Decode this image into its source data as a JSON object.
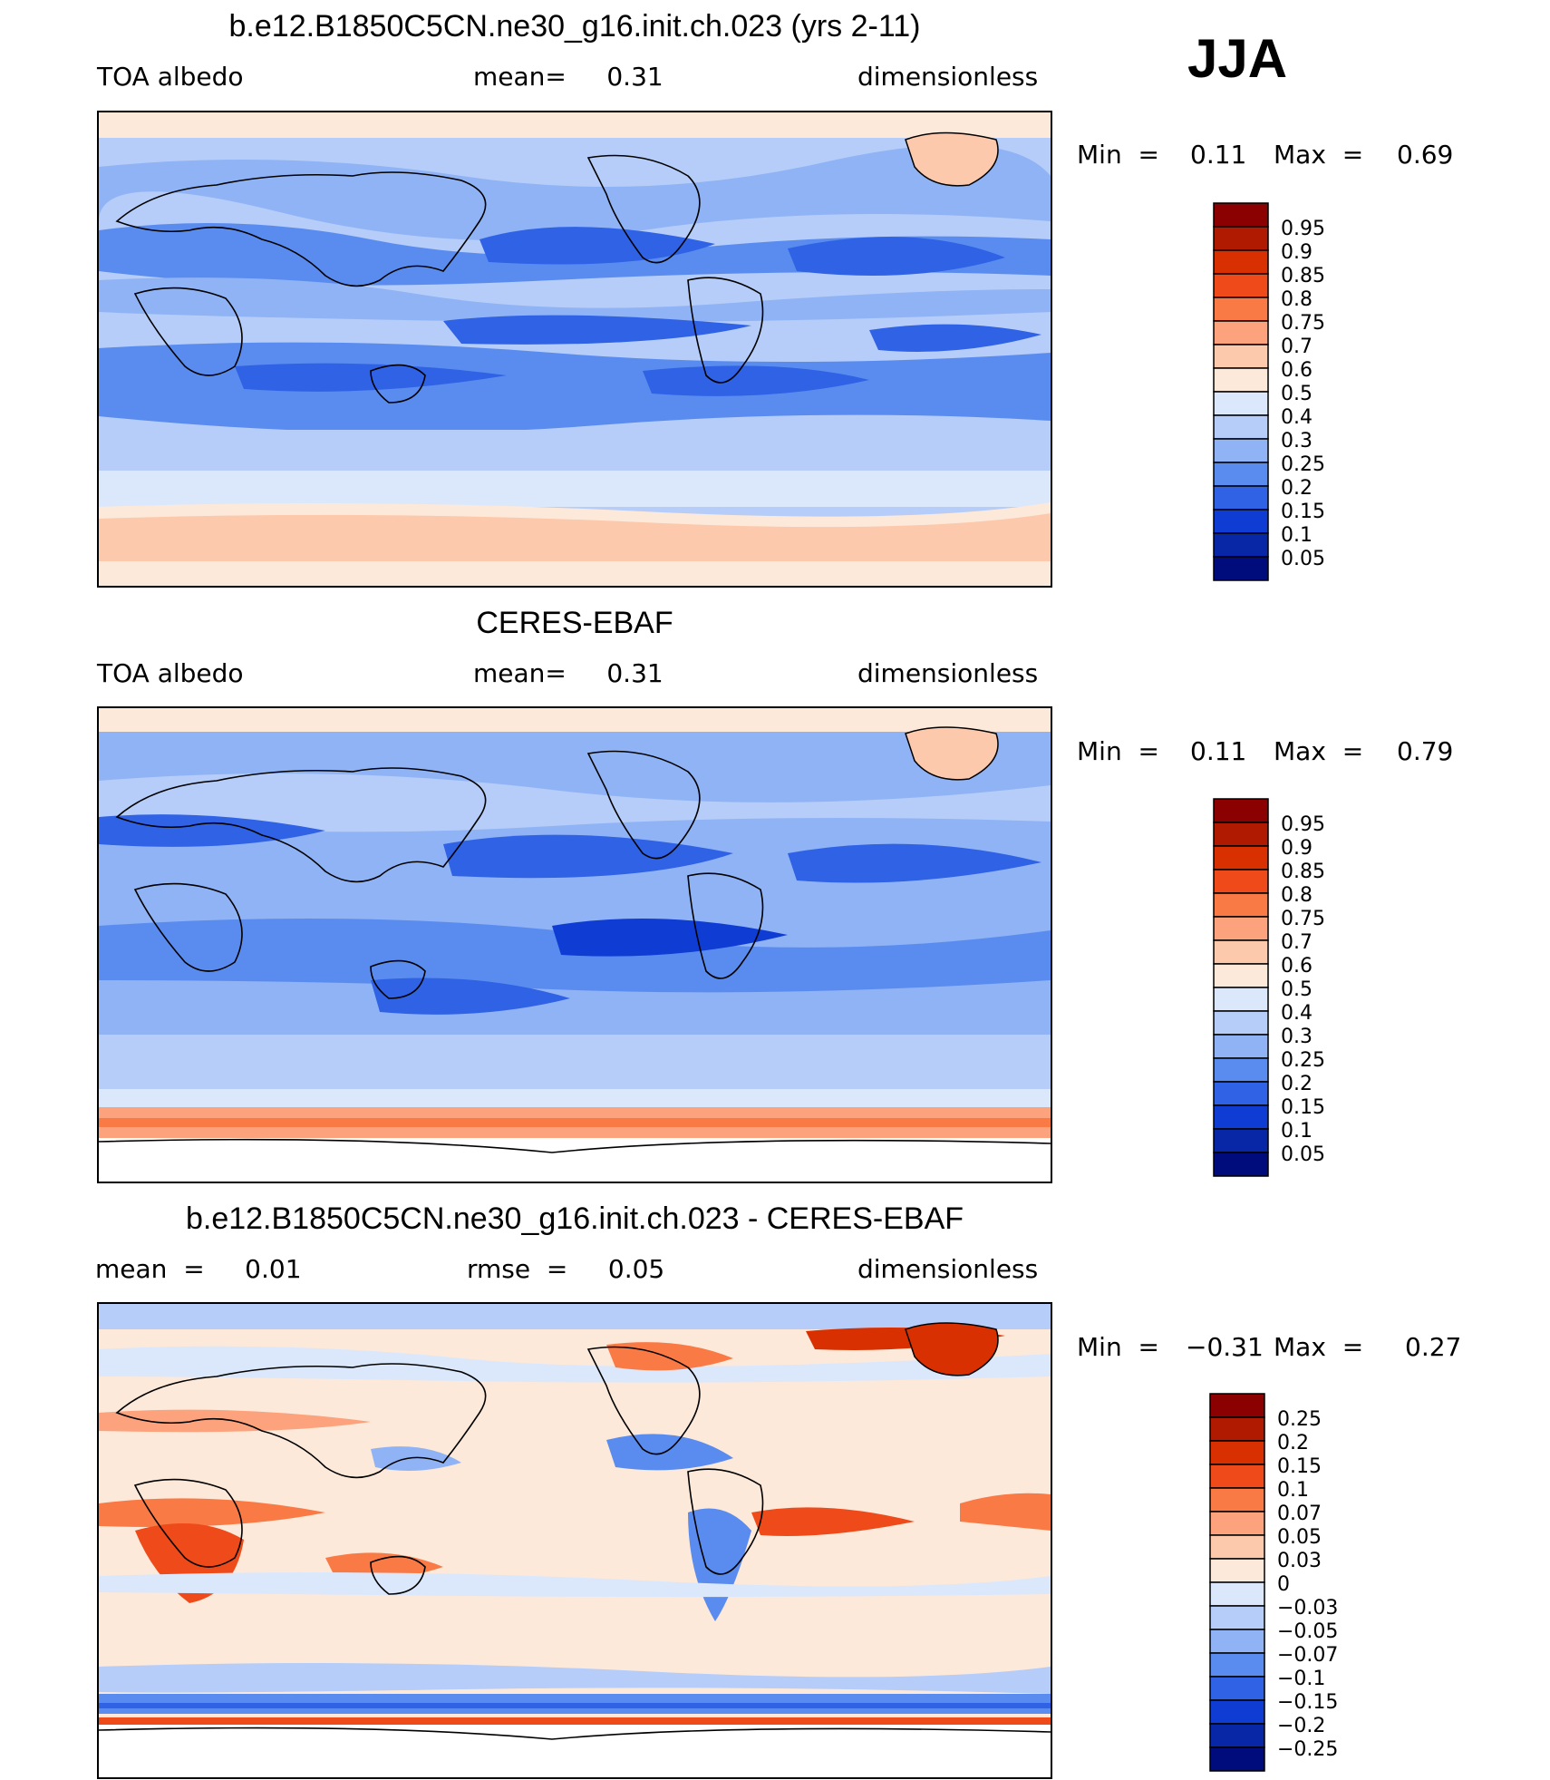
{
  "season": "JJA",
  "panels": [
    {
      "title": "b.e12.B1850C5CN.ne30_g16.init.ch.023 (yrs 2-11)",
      "left_label": "TOA  albedo",
      "center_label": "mean=     0.31",
      "right_label": "dimensionless",
      "min_label": "Min  =",
      "min_value": "0.11",
      "max_label": "Max  =",
      "max_value": "0.69"
    },
    {
      "title": "CERES-EBAF",
      "left_label": "TOA  albedo",
      "center_label": "mean=     0.31",
      "right_label": "dimensionless",
      "min_label": "Min  =",
      "min_value": "0.11",
      "max_label": "Max  =",
      "max_value": "0.79"
    },
    {
      "title": "b.e12.B1850C5CN.ne30_g16.init.ch.023 - CERES-EBAF",
      "left_label": "mean  =     0.01",
      "center_label": "rmse  =     0.05",
      "right_label": "dimensionless",
      "min_label": "Min  =",
      "min_value": "−0.31",
      "max_label": "Max  =",
      "max_value": "0.27"
    }
  ],
  "chart_data": [
    {
      "type": "heatmap",
      "colorbar_levels": [
        "0.95",
        "0.9",
        "0.85",
        "0.8",
        "0.75",
        "0.7",
        "0.6",
        "0.5",
        "0.4",
        "0.3",
        "0.25",
        "0.2",
        "0.15",
        "0.1",
        "0.05"
      ],
      "colorbar_colors": [
        "#8b0000",
        "#b01a00",
        "#d83000",
        "#ee4a1a",
        "#fa7a45",
        "#fca27c",
        "#fcc9ad",
        "#fde9da",
        "#dbe8fc",
        "#b5cdf8",
        "#8fb3f5",
        "#5a8cef",
        "#2f62e5",
        "#0f3dd4",
        "#0827a6",
        "#000c7c"
      ],
      "zonal_profile": [
        {
          "lat": 85,
          "value": 0.55
        },
        {
          "lat": 70,
          "value": 0.35
        },
        {
          "lat": 50,
          "value": 0.35
        },
        {
          "lat": 30,
          "value": 0.2
        },
        {
          "lat": 10,
          "value": 0.25
        },
        {
          "lat": -10,
          "value": 0.2
        },
        {
          "lat": -30,
          "value": 0.25
        },
        {
          "lat": -50,
          "value": 0.4
        },
        {
          "lat": -65,
          "value": 0.55
        },
        {
          "lat": -85,
          "value": 0.6
        }
      ]
    },
    {
      "type": "heatmap",
      "colorbar_levels": [
        "0.95",
        "0.9",
        "0.85",
        "0.8",
        "0.75",
        "0.7",
        "0.6",
        "0.5",
        "0.4",
        "0.3",
        "0.25",
        "0.2",
        "0.15",
        "0.1",
        "0.05"
      ],
      "colorbar_colors": [
        "#8b0000",
        "#b01a00",
        "#d83000",
        "#ee4a1a",
        "#fa7a45",
        "#fca27c",
        "#fcc9ad",
        "#fde9da",
        "#dbe8fc",
        "#b5cdf8",
        "#8fb3f5",
        "#5a8cef",
        "#2f62e5",
        "#0f3dd4",
        "#0827a6",
        "#000c7c"
      ],
      "zonal_profile": [
        {
          "lat": 85,
          "value": 0.55
        },
        {
          "lat": 70,
          "value": 0.35
        },
        {
          "lat": 50,
          "value": 0.3
        },
        {
          "lat": 30,
          "value": 0.2
        },
        {
          "lat": 10,
          "value": 0.2
        },
        {
          "lat": -10,
          "value": 0.15
        },
        {
          "lat": -30,
          "value": 0.2
        },
        {
          "lat": -50,
          "value": 0.35
        },
        {
          "lat": -65,
          "value": 0.7
        },
        {
          "lat": -85,
          "value": null
        }
      ]
    },
    {
      "type": "heatmap",
      "colorbar_levels": [
        "0.25",
        "0.2",
        "0.15",
        "0.1",
        "0.07",
        "0.05",
        "0.03",
        "0",
        "−0.03",
        "−0.05",
        "−0.07",
        "−0.1",
        "−0.15",
        "−0.2",
        "−0.25"
      ],
      "colorbar_colors": [
        "#8b0000",
        "#b01a00",
        "#d83000",
        "#ee4a1a",
        "#fa7a45",
        "#fca27c",
        "#fcc9ad",
        "#fde9da",
        "#dbe8fc",
        "#b5cdf8",
        "#8fb3f5",
        "#5a8cef",
        "#2f62e5",
        "#0f3dd4",
        "#0827a6",
        "#000c7c"
      ],
      "zonal_profile": [
        {
          "lat": 85,
          "value": -0.03
        },
        {
          "lat": 60,
          "value": 0.03
        },
        {
          "lat": 40,
          "value": 0.03
        },
        {
          "lat": 20,
          "value": 0.0
        },
        {
          "lat": 0,
          "value": 0.03
        },
        {
          "lat": -20,
          "value": 0.0
        },
        {
          "lat": -40,
          "value": -0.03
        },
        {
          "lat": -60,
          "value": -0.1
        },
        {
          "lat": -68,
          "value": 0.15
        },
        {
          "lat": -85,
          "value": null
        }
      ]
    }
  ]
}
